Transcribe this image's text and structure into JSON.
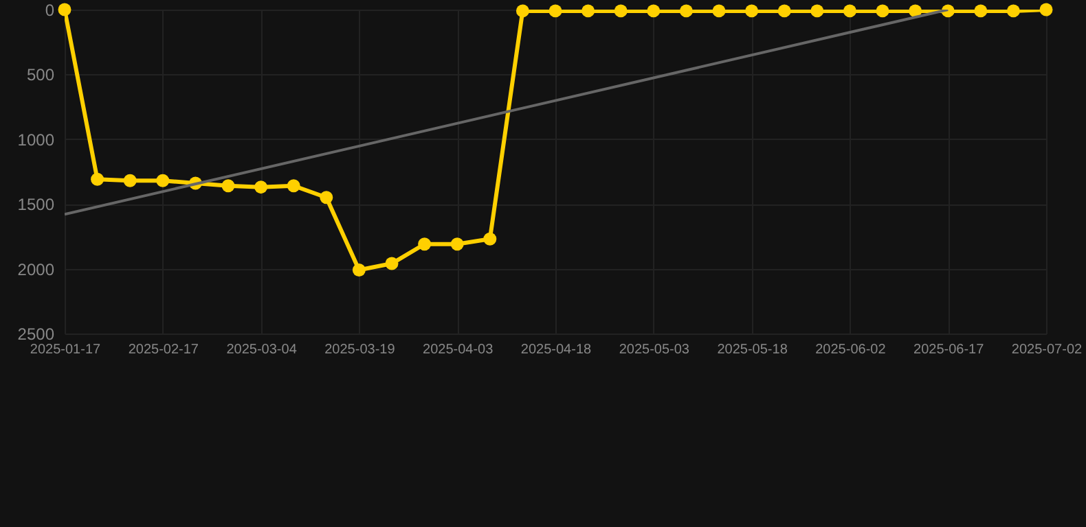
{
  "chart_data": {
    "type": "line",
    "categories": [
      "2025-01-17",
      null,
      null,
      "2025-02-17",
      null,
      null,
      "2025-03-04",
      null,
      null,
      "2025-03-19",
      null,
      null,
      "2025-04-03",
      null,
      null,
      "2025-04-18",
      null,
      null,
      "2025-05-03",
      null,
      null,
      "2025-05-18",
      null,
      null,
      "2025-06-02",
      null,
      null,
      "2025-06-17",
      null,
      null,
      "2025-07-02"
    ],
    "series": [
      {
        "color": "#ffd000",
        "marker": "circle",
        "values": [
          0,
          1310,
          1320,
          1320,
          1340,
          1360,
          1370,
          1360,
          1450,
          2010,
          1960,
          1810,
          1810,
          1770,
          10,
          10,
          10,
          10,
          10,
          10,
          10,
          10,
          10,
          10,
          10,
          10,
          10,
          10,
          10,
          10,
          0
        ]
      },
      {
        "color": "#666666",
        "marker": "none",
        "values": [
          1580,
          null,
          null,
          null,
          null,
          null,
          null,
          null,
          null,
          null,
          null,
          null,
          null,
          null,
          null,
          null,
          null,
          null,
          null,
          null,
          null,
          null,
          null,
          null,
          null,
          null,
          null,
          0,
          null,
          null,
          null
        ]
      }
    ],
    "ylim": [
      2500,
      0
    ],
    "yticks": [
      0,
      500,
      1000,
      1500,
      2000,
      2500
    ],
    "grid": true
  }
}
